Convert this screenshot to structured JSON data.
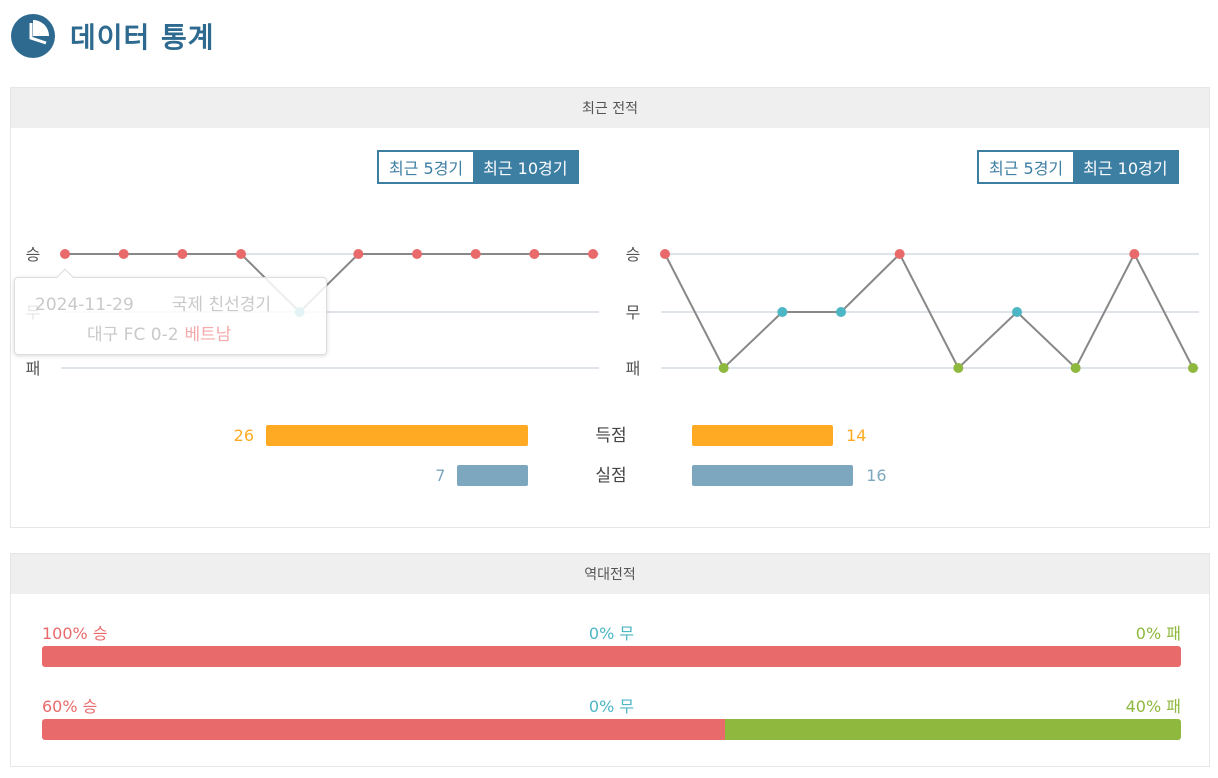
{
  "header": {
    "title": "데이터 통계",
    "icon": "pie-chart-icon"
  },
  "recent": {
    "section_title": "최근 전적",
    "toggle_left": {
      "opt5": "최근 5경기",
      "opt10": "최근 10경기",
      "active": "opt10"
    },
    "toggle_right": {
      "opt5": "최근 5경기",
      "opt10": "최근 10경기",
      "active": "opt10"
    },
    "result_labels": {
      "win": "승",
      "draw": "무",
      "loss": "패"
    },
    "tooltip": {
      "date": "2024-11-29",
      "competition": "국제 친선경기",
      "home": "대구 FC",
      "score": "0-2",
      "away": "베트남"
    },
    "stats": {
      "scored_label": "득점",
      "conceded_label": "실점",
      "left_scored": 26,
      "left_conceded": 7,
      "right_scored": 14,
      "right_conceded": 16
    }
  },
  "h2h": {
    "section_title": "역대전적",
    "rows": [
      {
        "win": "100% 승",
        "draw": "0% 무",
        "loss": "0% 패",
        "win_pct": 100,
        "draw_pct": 0,
        "loss_pct": 0
      },
      {
        "win": "60% 승",
        "draw": "0% 무",
        "loss": "40% 패",
        "win_pct": 60,
        "draw_pct": 0,
        "loss_pct": 40
      }
    ]
  },
  "colors": {
    "win": "#e96a6a",
    "draw": "#4db6c4",
    "loss": "#8fb83e",
    "scored": "#ffaa22",
    "conceded": "#7da7bf",
    "accent": "#3d7ea3"
  },
  "chart_data": [
    {
      "type": "line",
      "categories": [
        "승",
        "무",
        "패"
      ],
      "x": [
        1,
        2,
        3,
        4,
        5,
        6,
        7,
        8,
        9,
        10
      ],
      "values": [
        "승",
        "승",
        "승",
        "승",
        "무",
        "승",
        "승",
        "승",
        "승",
        "승"
      ]
    },
    {
      "type": "line",
      "categories": [
        "승",
        "무",
        "패"
      ],
      "x": [
        1,
        2,
        3,
        4,
        5,
        6,
        7,
        8,
        9,
        10
      ],
      "values": [
        "승",
        "패",
        "무",
        "무",
        "승",
        "패",
        "무",
        "패",
        "승",
        "패"
      ]
    },
    {
      "type": "bar",
      "categories": [
        "득점",
        "실점"
      ],
      "series": [
        {
          "values": [
            26,
            7
          ]
        },
        {
          "values": [
            14,
            16
          ]
        }
      ]
    }
  ]
}
